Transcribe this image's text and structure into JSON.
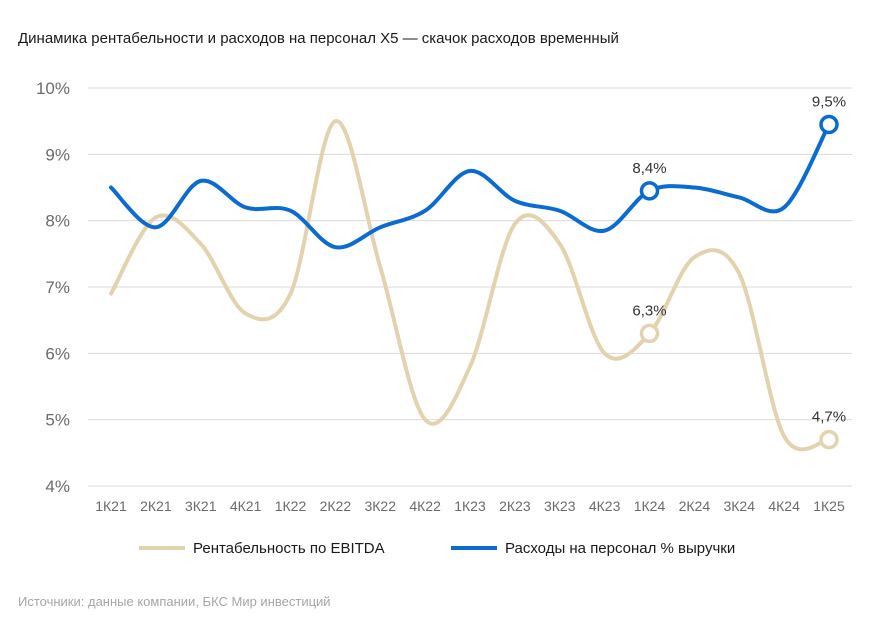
{
  "chart_data": {
    "type": "line",
    "title": "Динамика рентабельности и расходов на персонал Х5 — скачок расходов временный",
    "source": "Источники: данные компании, БКС Мир инвестиций",
    "categories": [
      "1К21",
      "2К21",
      "3К21",
      "4К21",
      "1К22",
      "2К22",
      "3К22",
      "4К22",
      "1К23",
      "2К23",
      "3К23",
      "4К23",
      "1К24",
      "2К24",
      "3К24",
      "4К24",
      "1К25"
    ],
    "y_ticks": [
      "4%",
      "5%",
      "6%",
      "7%",
      "8%",
      "9%",
      "10%"
    ],
    "ylim": [
      4,
      10
    ],
    "grid": true,
    "legend_position": "bottom",
    "series": [
      {
        "name": "Рентабельность по EBITDA",
        "color": "#E3D2AE",
        "values": [
          6.9,
          8.05,
          7.65,
          6.6,
          6.9,
          9.5,
          7.3,
          5.0,
          5.8,
          7.95,
          7.65,
          6.0,
          6.3,
          7.45,
          7.2,
          4.75,
          4.7
        ],
        "labels": [
          {
            "index": 12,
            "text": "6,3%"
          },
          {
            "index": 16,
            "text": "4,7%"
          }
        ]
      },
      {
        "name": "Расходы на персонал % выручки",
        "color": "#0A6BD0",
        "values": [
          8.5,
          7.9,
          8.6,
          8.2,
          8.15,
          7.6,
          7.9,
          8.15,
          8.75,
          8.3,
          8.15,
          7.85,
          8.45,
          8.5,
          8.35,
          8.2,
          9.45
        ],
        "labels": [
          {
            "index": 12,
            "text": "8,4%"
          },
          {
            "index": 16,
            "text": "9,5%"
          }
        ]
      }
    ]
  }
}
